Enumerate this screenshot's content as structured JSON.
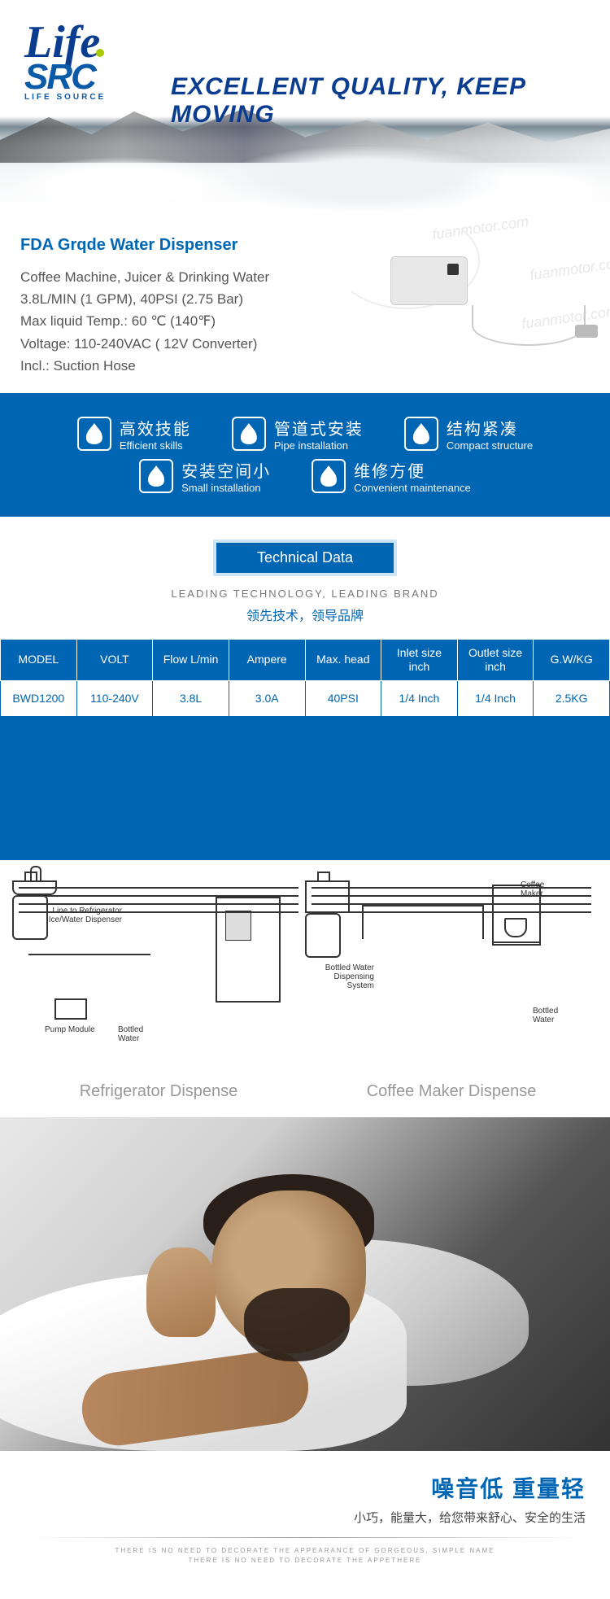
{
  "colors": {
    "brand_blue": "#0066b3",
    "logo_navy": "#0a3d8f",
    "accent_green": "#a8c800",
    "text_grey": "#555"
  },
  "header": {
    "logo_top": "Life",
    "logo_bottom": "SRC",
    "logo_sub": "LIFE SOURCE",
    "slogan": "EXCELLENT QUALITY, KEEP MOVING"
  },
  "product": {
    "title": "FDA Grqde Water Dispenser",
    "lines": [
      "Coffee Machine, Juicer & Drinking Water",
      "3.8L/MIN (1 GPM),  40PSI (2.75 Bar)",
      "Max liquid Temp.:  60 ℃ (140℉)",
      "Voltage: 110-240VAC   ( 12V Converter)",
      "Incl.: Suction Hose"
    ],
    "watermark": "fuanmotor.com"
  },
  "features": {
    "row1": [
      {
        "cn": "高效技能",
        "en": "Efficient skills"
      },
      {
        "cn": "管道式安装",
        "en": "Pipe installation"
      },
      {
        "cn": "结构紧凑",
        "en": "Compact structure"
      }
    ],
    "row2": [
      {
        "cn": "安装空间小",
        "en": "Small installation"
      },
      {
        "cn": "维修方便",
        "en": "Convenient maintenance"
      }
    ]
  },
  "tech": {
    "tab": "Technical Data",
    "sub": "LEADING TECHNOLOGY, LEADING BRAND",
    "cn": "领先技术，领导品牌",
    "headers": [
      "MODEL",
      "VOLT",
      "Flow L/min",
      "Ampere",
      "Max. head",
      "Inlet size inch",
      "Outlet size inch",
      "G.W/KG"
    ],
    "row": [
      "BWD1200",
      "110-240V",
      "3.8L",
      "3.0A",
      "40PSI",
      "1/4 Inch",
      "1/4 Inch",
      "2.5KG"
    ],
    "empty_rows": 4,
    "col_pattern": [
      "blue",
      "white",
      "blue",
      "white",
      "blue",
      "white",
      "blue",
      "white"
    ]
  },
  "diagrams": {
    "d1": {
      "title": "Refrigerator Dispense",
      "labels": {
        "line": "Line to Refrigerator\nIce/Water Dispenser",
        "pump": "Pump Module",
        "bottle": "Bottled\nWater"
      }
    },
    "d2": {
      "title": "Coffee Maker Dispense",
      "labels": {
        "coffee": "Coffee\nMaker",
        "system": "Bottled Water\nDispensing System",
        "bottle": "Bottled\nWater"
      }
    }
  },
  "footer": {
    "main": "噪音低  重量轻",
    "sub": "小巧，能量大，给您带来舒心、安全的生活",
    "tiny1": "THERE IS NO NEED TO DECORATE THE APPEARANCE OF GORGEOUS, SIMPLE NAME",
    "tiny2": "THERE IS NO NEED TO DECORATE THE APPETHERE"
  }
}
